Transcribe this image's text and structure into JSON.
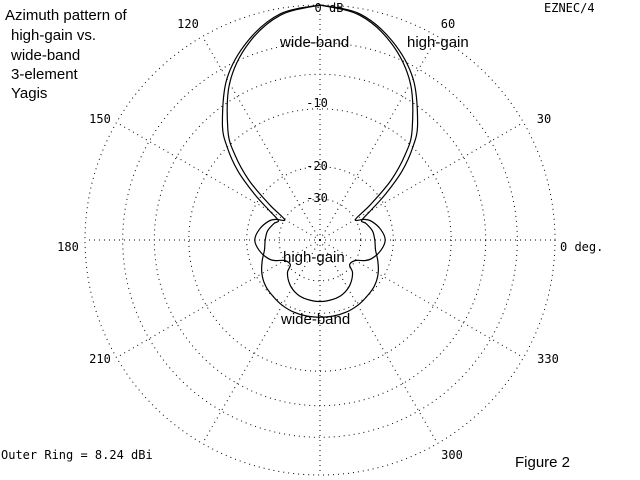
{
  "title_lines": [
    "Azimuth pattern of",
    "high-gain vs.",
    "wide-band",
    "3-element",
    "Yagis"
  ],
  "program": "EZNEC/4",
  "figure_label": "Figure 2",
  "outer_ring_text": "Outer Ring = 8.24 dBi",
  "colors": {
    "background": "#ffffff",
    "ink": "#000000"
  },
  "chart_data": {
    "type": "polar",
    "plot": "azimuth",
    "outer_ring_dbi": 8.24,
    "ring_labels": [
      "0 dB",
      "-10",
      "-20",
      "-30"
    ],
    "angle_labels": [
      {
        "deg": 0,
        "text": "0 deg."
      },
      {
        "deg": 30,
        "text": "30"
      },
      {
        "deg": 60,
        "text": "60"
      },
      {
        "deg": 120,
        "text": "120"
      },
      {
        "deg": 150,
        "text": "150"
      },
      {
        "deg": 180,
        "text": "180"
      },
      {
        "deg": 210,
        "text": "210"
      },
      {
        "deg": 300,
        "text": "300"
      },
      {
        "deg": 330,
        "text": "330"
      }
    ],
    "series": [
      {
        "name": "high-gain",
        "pattern": [
          [
            90,
            0.0
          ],
          [
            80,
            -0.5
          ],
          [
            70,
            -2.0
          ],
          [
            60,
            -4.5
          ],
          [
            50,
            -8.5
          ],
          [
            45,
            -11.5
          ],
          [
            40,
            -16
          ],
          [
            35,
            -23
          ],
          [
            30,
            -30
          ],
          [
            25,
            -27
          ],
          [
            20,
            -25
          ],
          [
            10,
            -23
          ],
          [
            0,
            -22
          ],
          [
            350,
            -23
          ],
          [
            340,
            -25
          ],
          [
            335,
            -27
          ],
          [
            330,
            -30
          ],
          [
            320,
            -31
          ],
          [
            315,
            -28
          ],
          [
            305,
            -25.5
          ],
          [
            295,
            -24
          ],
          [
            285,
            -23.3
          ],
          [
            270,
            -23
          ],
          [
            255,
            -23.3
          ],
          [
            245,
            -24
          ],
          [
            235,
            -25.5
          ],
          [
            225,
            -28
          ],
          [
            220,
            -31
          ],
          [
            210,
            -30
          ],
          [
            205,
            -27
          ],
          [
            200,
            -25
          ],
          [
            190,
            -23
          ],
          [
            180,
            -22
          ],
          [
            170,
            -23
          ],
          [
            160,
            -25
          ],
          [
            155,
            -27
          ],
          [
            150,
            -30
          ],
          [
            145,
            -23
          ],
          [
            140,
            -16
          ],
          [
            135,
            -11.5
          ],
          [
            130,
            -8.5
          ],
          [
            120,
            -4.5
          ],
          [
            110,
            -2.0
          ],
          [
            100,
            -0.5
          ],
          [
            90,
            0.0
          ]
        ]
      },
      {
        "name": "wide-band",
        "pattern": [
          [
            90,
            0.0
          ],
          [
            80,
            -0.4
          ],
          [
            70,
            -1.8
          ],
          [
            60,
            -4.0
          ],
          [
            50,
            -7.5
          ],
          [
            45,
            -10
          ],
          [
            40,
            -13.5
          ],
          [
            35,
            -18.5
          ],
          [
            30,
            -24
          ],
          [
            25,
            -28
          ],
          [
            20,
            -27
          ],
          [
            10,
            -25.5
          ],
          [
            0,
            -25
          ],
          [
            350,
            -24.5
          ],
          [
            340,
            -23
          ],
          [
            330,
            -21.5
          ],
          [
            320,
            -20.5
          ],
          [
            310,
            -20
          ],
          [
            300,
            -19.5
          ],
          [
            290,
            -19.2
          ],
          [
            280,
            -19.1
          ],
          [
            270,
            -19.1
          ],
          [
            260,
            -19.1
          ],
          [
            250,
            -19.2
          ],
          [
            240,
            -19.5
          ],
          [
            230,
            -20
          ],
          [
            220,
            -20.5
          ],
          [
            210,
            -21.5
          ],
          [
            200,
            -23
          ],
          [
            190,
            -24.5
          ],
          [
            180,
            -25
          ],
          [
            170,
            -25.5
          ],
          [
            160,
            -27
          ],
          [
            155,
            -28
          ],
          [
            150,
            -24
          ],
          [
            145,
            -18.5
          ],
          [
            140,
            -13.5
          ],
          [
            135,
            -10
          ],
          [
            130,
            -7.5
          ],
          [
            120,
            -4.0
          ],
          [
            110,
            -1.8
          ],
          [
            100,
            -0.4
          ],
          [
            90,
            0.0
          ]
        ]
      }
    ],
    "annotations": [
      {
        "text": "wide-band",
        "near": "main lobe left"
      },
      {
        "text": "high-gain",
        "near": "main lobe right"
      },
      {
        "text": "high-gain",
        "near": "rear lobe"
      },
      {
        "text": "wide-band",
        "near": "below rear lobe"
      }
    ]
  }
}
